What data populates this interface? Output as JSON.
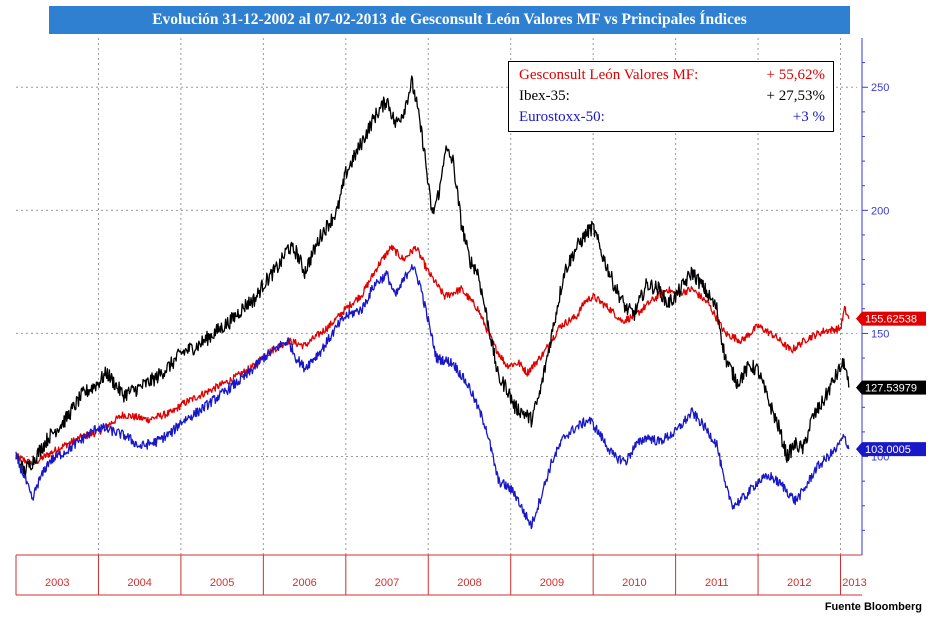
{
  "title": "Evolución 31-12-2002 al 07-02-2013 de Gesconsult León Valores MF vs Principales Índices",
  "source": "Fuente Bloomberg",
  "legend": [
    {
      "label": "Gesconsult León Valores  MF:",
      "value": "+ 55,62%",
      "color": "#e00000"
    },
    {
      "label": "Ibex-35:",
      "value": "+ 27,53%",
      "color": "#000000"
    },
    {
      "label": "Eurostoxx-50:",
      "value": "+3 %",
      "color": "#1818c8"
    }
  ],
  "chart_data": {
    "type": "line",
    "x_label": "",
    "y_label": "",
    "ylim": [
      60,
      270
    ],
    "y_ticks": [
      100,
      150,
      200,
      250
    ],
    "x_ticks": [
      "2003",
      "2004",
      "2005",
      "2006",
      "2007",
      "2008",
      "2009",
      "2010",
      "2011",
      "2012",
      "2013"
    ],
    "grid": true,
    "series": [
      {
        "name": "Gesconsult León Valores MF",
        "color": "#e00000",
        "end_label": "155.62538",
        "points": [
          [
            2003.0,
            100
          ],
          [
            2003.2,
            97
          ],
          [
            2003.5,
            103
          ],
          [
            2003.8,
            108
          ],
          [
            2004.0,
            110
          ],
          [
            2004.3,
            117
          ],
          [
            2004.6,
            115
          ],
          [
            2004.9,
            118
          ],
          [
            2005.0,
            121
          ],
          [
            2005.3,
            126
          ],
          [
            2005.6,
            131
          ],
          [
            2005.9,
            137
          ],
          [
            2006.0,
            141
          ],
          [
            2006.3,
            147
          ],
          [
            2006.5,
            145
          ],
          [
            2006.8,
            153
          ],
          [
            2007.0,
            160
          ],
          [
            2007.2,
            166
          ],
          [
            2007.4,
            178
          ],
          [
            2007.55,
            185
          ],
          [
            2007.7,
            180
          ],
          [
            2007.85,
            185
          ],
          [
            2008.0,
            175
          ],
          [
            2008.2,
            165
          ],
          [
            2008.4,
            168
          ],
          [
            2008.6,
            160
          ],
          [
            2008.8,
            145
          ],
          [
            2008.95,
            137
          ],
          [
            2009.1,
            138
          ],
          [
            2009.2,
            134
          ],
          [
            2009.4,
            142
          ],
          [
            2009.6,
            153
          ],
          [
            2009.8,
            157
          ],
          [
            2009.9,
            163
          ],
          [
            2010.0,
            165
          ],
          [
            2010.2,
            160
          ],
          [
            2010.35,
            155
          ],
          [
            2010.5,
            157
          ],
          [
            2010.7,
            163
          ],
          [
            2010.9,
            168
          ],
          [
            2011.0,
            166
          ],
          [
            2011.2,
            168
          ],
          [
            2011.4,
            162
          ],
          [
            2011.6,
            150
          ],
          [
            2011.8,
            147
          ],
          [
            2012.0,
            153
          ],
          [
            2012.2,
            149
          ],
          [
            2012.4,
            143
          ],
          [
            2012.6,
            148
          ],
          [
            2012.8,
            151
          ],
          [
            2013.0,
            152
          ],
          [
            2013.05,
            160
          ],
          [
            2013.1,
            156
          ]
        ]
      },
      {
        "name": "Ibex-35",
        "color": "#000000",
        "end_label": "127.53979",
        "points": [
          [
            2003.0,
            100
          ],
          [
            2003.1,
            94
          ],
          [
            2003.2,
            98
          ],
          [
            2003.4,
            108
          ],
          [
            2003.6,
            115
          ],
          [
            2003.8,
            125
          ],
          [
            2004.0,
            130
          ],
          [
            2004.1,
            134
          ],
          [
            2004.3,
            125
          ],
          [
            2004.5,
            128
          ],
          [
            2004.7,
            132
          ],
          [
            2004.9,
            138
          ],
          [
            2005.0,
            142
          ],
          [
            2005.2,
            145
          ],
          [
            2005.4,
            150
          ],
          [
            2005.6,
            155
          ],
          [
            2005.8,
            162
          ],
          [
            2005.9,
            164
          ],
          [
            2006.0,
            170
          ],
          [
            2006.2,
            178
          ],
          [
            2006.3,
            185
          ],
          [
            2006.4,
            183
          ],
          [
            2006.5,
            175
          ],
          [
            2006.7,
            190
          ],
          [
            2006.9,
            200
          ],
          [
            2007.0,
            215
          ],
          [
            2007.2,
            228
          ],
          [
            2007.35,
            238
          ],
          [
            2007.5,
            245
          ],
          [
            2007.6,
            235
          ],
          [
            2007.7,
            240
          ],
          [
            2007.8,
            252
          ],
          [
            2007.85,
            245
          ],
          [
            2007.95,
            225
          ],
          [
            2008.0,
            210
          ],
          [
            2008.05,
            198
          ],
          [
            2008.15,
            210
          ],
          [
            2008.2,
            225
          ],
          [
            2008.3,
            220
          ],
          [
            2008.4,
            195
          ],
          [
            2008.5,
            180
          ],
          [
            2008.6,
            175
          ],
          [
            2008.75,
            150
          ],
          [
            2008.85,
            132
          ],
          [
            2008.95,
            128
          ],
          [
            2009.05,
            120
          ],
          [
            2009.15,
            118
          ],
          [
            2009.25,
            115
          ],
          [
            2009.35,
            125
          ],
          [
            2009.5,
            150
          ],
          [
            2009.65,
            175
          ],
          [
            2009.8,
            185
          ],
          [
            2009.95,
            192
          ],
          [
            2010.0,
            193
          ],
          [
            2010.1,
            183
          ],
          [
            2010.25,
            170
          ],
          [
            2010.4,
            160
          ],
          [
            2010.5,
            158
          ],
          [
            2010.65,
            170
          ],
          [
            2010.8,
            168
          ],
          [
            2010.9,
            162
          ],
          [
            2011.0,
            165
          ],
          [
            2011.2,
            175
          ],
          [
            2011.35,
            168
          ],
          [
            2011.5,
            160
          ],
          [
            2011.6,
            140
          ],
          [
            2011.75,
            130
          ],
          [
            2011.9,
            137
          ],
          [
            2012.0,
            135
          ],
          [
            2012.1,
            125
          ],
          [
            2012.25,
            112
          ],
          [
            2012.35,
            100
          ],
          [
            2012.45,
            105
          ],
          [
            2012.55,
            103
          ],
          [
            2012.65,
            115
          ],
          [
            2012.8,
            123
          ],
          [
            2012.9,
            130
          ],
          [
            2013.0,
            136
          ],
          [
            2013.05,
            138
          ],
          [
            2013.1,
            128
          ]
        ]
      },
      {
        "name": "Eurostoxx-50",
        "color": "#1818c8",
        "end_label": "103.0005",
        "points": [
          [
            2003.0,
            100
          ],
          [
            2003.1,
            92
          ],
          [
            2003.2,
            82
          ],
          [
            2003.25,
            88
          ],
          [
            2003.4,
            98
          ],
          [
            2003.6,
            102
          ],
          [
            2003.8,
            107
          ],
          [
            2004.0,
            112
          ],
          [
            2004.2,
            110
          ],
          [
            2004.35,
            108
          ],
          [
            2004.5,
            104
          ],
          [
            2004.7,
            106
          ],
          [
            2004.9,
            110
          ],
          [
            2005.0,
            114
          ],
          [
            2005.2,
            118
          ],
          [
            2005.4,
            123
          ],
          [
            2005.6,
            128
          ],
          [
            2005.8,
            133
          ],
          [
            2006.0,
            140
          ],
          [
            2006.2,
            145
          ],
          [
            2006.3,
            147
          ],
          [
            2006.4,
            140
          ],
          [
            2006.5,
            136
          ],
          [
            2006.7,
            143
          ],
          [
            2006.9,
            153
          ],
          [
            2007.0,
            157
          ],
          [
            2007.2,
            160
          ],
          [
            2007.35,
            170
          ],
          [
            2007.5,
            174
          ],
          [
            2007.6,
            165
          ],
          [
            2007.8,
            178
          ],
          [
            2007.9,
            170
          ],
          [
            2008.0,
            155
          ],
          [
            2008.1,
            140
          ],
          [
            2008.3,
            138
          ],
          [
            2008.5,
            128
          ],
          [
            2008.7,
            112
          ],
          [
            2008.85,
            90
          ],
          [
            2008.95,
            88
          ],
          [
            2009.05,
            85
          ],
          [
            2009.15,
            78
          ],
          [
            2009.25,
            72
          ],
          [
            2009.35,
            82
          ],
          [
            2009.5,
            98
          ],
          [
            2009.65,
            108
          ],
          [
            2009.8,
            112
          ],
          [
            2009.95,
            115
          ],
          [
            2010.0,
            113
          ],
          [
            2010.1,
            108
          ],
          [
            2010.25,
            100
          ],
          [
            2010.4,
            98
          ],
          [
            2010.5,
            104
          ],
          [
            2010.65,
            108
          ],
          [
            2010.8,
            106
          ],
          [
            2010.9,
            108
          ],
          [
            2011.0,
            110
          ],
          [
            2011.2,
            118
          ],
          [
            2011.35,
            112
          ],
          [
            2011.5,
            105
          ],
          [
            2011.6,
            88
          ],
          [
            2011.7,
            80
          ],
          [
            2011.85,
            84
          ],
          [
            2012.0,
            90
          ],
          [
            2012.15,
            92
          ],
          [
            2012.3,
            88
          ],
          [
            2012.45,
            82
          ],
          [
            2012.55,
            86
          ],
          [
            2012.7,
            95
          ],
          [
            2012.85,
            100
          ],
          [
            2012.95,
            103
          ],
          [
            2013.0,
            106
          ],
          [
            2013.05,
            108
          ],
          [
            2013.1,
            103
          ]
        ]
      }
    ]
  }
}
